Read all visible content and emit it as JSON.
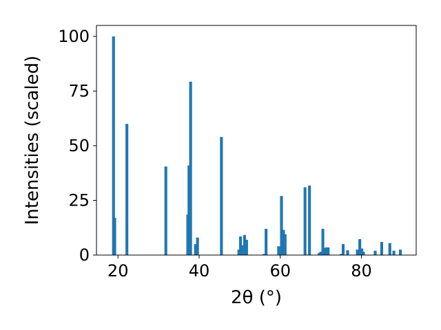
{
  "chart_data": {
    "type": "bar",
    "title": "",
    "xlabel": "2θ (°)",
    "ylabel": "Intensities (scaled)",
    "xlim": [
      14.7,
      93.5
    ],
    "ylim": [
      0,
      105
    ],
    "xticks": [
      20,
      40,
      60,
      80
    ],
    "yticks": [
      0,
      25,
      50,
      75,
      100
    ],
    "grid": false,
    "bar_width": 0.7,
    "color": "#1f77b4",
    "x": [
      18.9,
      19.2,
      22.2,
      31.8,
      37.2,
      37.5,
      37.9,
      39.1,
      39.6,
      45.5,
      49.8,
      50.2,
      50.6,
      51.2,
      51.7,
      56.0,
      56.5,
      59.6,
      60.3,
      60.8,
      61.2,
      66.1,
      67.2,
      69.6,
      70.0,
      70.5,
      71.0,
      71.4,
      71.8,
      75.0,
      75.5,
      76.6,
      79.0,
      79.6,
      80.1,
      80.5,
      83.4,
      85.0,
      87.0,
      88.0,
      89.6
    ],
    "values": [
      100,
      17,
      60,
      40.5,
      18.5,
      41,
      79.3,
      5,
      8,
      54,
      2.5,
      8.5,
      4.5,
      9.2,
      7,
      0.5,
      12,
      4,
      27,
      11.5,
      9.5,
      31,
      31.8,
      1,
      1.5,
      12,
      3.3,
      3.5,
      3.5,
      0.5,
      5,
      2.2,
      2.5,
      7.3,
      3,
      1.5,
      2,
      6,
      5.5,
      2,
      2.5
    ]
  }
}
